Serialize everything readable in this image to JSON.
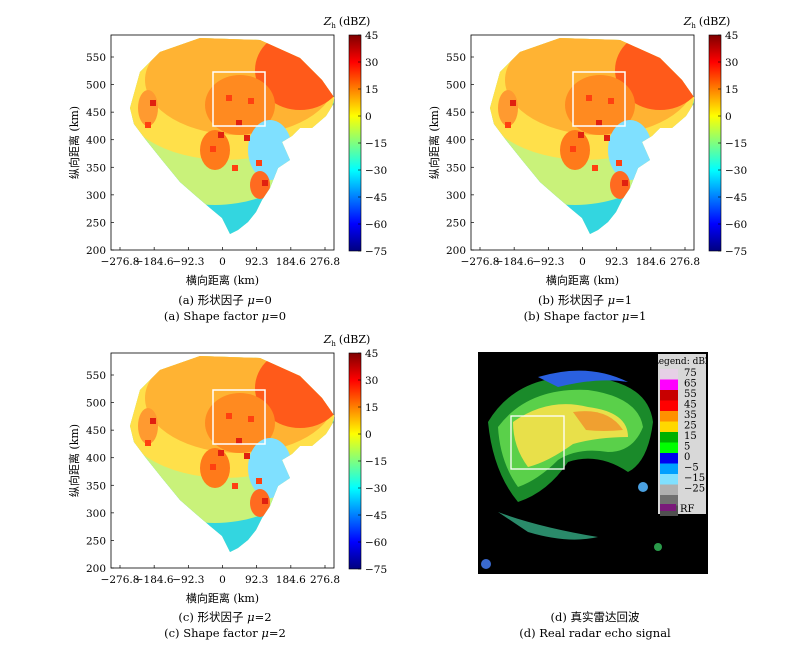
{
  "panels": [
    {
      "id": "a",
      "x_label": "横向距离 (km)",
      "y_label": "纵向距离 (km)",
      "x_ticks": [
        "−276.8",
        "−184.6",
        "−92.3",
        "0",
        "92.3",
        "184.6",
        "276.8"
      ],
      "y_ticks": [
        "550",
        "500",
        "450",
        "400",
        "350",
        "300",
        "250",
        "200"
      ],
      "colorbar_title_sym": "Z",
      "colorbar_title_sub": "h",
      "colorbar_title_unit": "(dBZ)",
      "colorbar_ticks": [
        "45",
        "30",
        "15",
        "0",
        "−15",
        "−30",
        "−45",
        "−60",
        "−75"
      ],
      "caption_cn_prefix": "(a) 形状因子 ",
      "caption_cn_mu": "μ",
      "caption_cn_val": "=0",
      "caption_en_prefix": "(a) Shape factor ",
      "caption_en_mu": "μ",
      "caption_en_val": "=0"
    },
    {
      "id": "b",
      "x_label": "横向距离 (km)",
      "y_label": "纵向距离 (km)",
      "x_ticks": [
        "−276.8",
        "−184.6",
        "−92.3",
        "0",
        "92.3",
        "184.6",
        "276.8"
      ],
      "y_ticks": [
        "550",
        "500",
        "450",
        "400",
        "350",
        "300",
        "250",
        "200"
      ],
      "colorbar_title_sym": "Z",
      "colorbar_title_sub": "h",
      "colorbar_title_unit": "(dBZ)",
      "colorbar_ticks": [
        "45",
        "30",
        "15",
        "0",
        "−15",
        "−30",
        "−45",
        "−60",
        "−75"
      ],
      "caption_cn_prefix": "(b) 形状因子 ",
      "caption_cn_mu": "μ",
      "caption_cn_val": "=1",
      "caption_en_prefix": "(b) Shape factor ",
      "caption_en_mu": "μ",
      "caption_en_val": "=1"
    },
    {
      "id": "c",
      "x_label": "横向距离 (km)",
      "y_label": "纵向距离 (km)",
      "x_ticks": [
        "−276.8",
        "−184.6",
        "−92.3",
        "0",
        "92.3",
        "184.6",
        "276.8"
      ],
      "y_ticks": [
        "550",
        "500",
        "450",
        "400",
        "350",
        "300",
        "250",
        "200"
      ],
      "colorbar_title_sym": "Z",
      "colorbar_title_sub": "h",
      "colorbar_title_unit": "(dBZ)",
      "colorbar_ticks": [
        "45",
        "30",
        "15",
        "0",
        "−15",
        "−30",
        "−45",
        "−60",
        "−75"
      ],
      "caption_cn_prefix": "(c) 形状因子 ",
      "caption_cn_mu": "μ",
      "caption_cn_val": "=2",
      "caption_en_prefix": "(c) Shape factor ",
      "caption_en_mu": "μ",
      "caption_en_val": "=2"
    }
  ],
  "radar": {
    "legend_title": "Legend: dBZ",
    "legend_values": [
      "75",
      "65",
      "55",
      "45",
      "35",
      "25",
      "15",
      "5",
      "0",
      "−5",
      "−15",
      "−25"
    ],
    "legend_rf": "RF",
    "caption_cn": "(d) 真实雷达回波",
    "caption_en": "(d) Real radar echo signal"
  },
  "colors": {
    "colormap": [
      "#00007f",
      "#0000ff",
      "#007fff",
      "#00ffff",
      "#7fff7f",
      "#ffff00",
      "#ff7f00",
      "#ff0000",
      "#7f0000"
    ],
    "legend_colors": [
      "#e6d0e6",
      "#ff00ff",
      "#c80000",
      "#ff0000",
      "#ff9000",
      "#ffd800",
      "#00b000",
      "#00ff00",
      "#0000f0",
      "#00a0ff",
      "#80e0ff",
      "#b0b0b0",
      "#707070",
      "#505050"
    ],
    "rf_color": "#7a1a7a",
    "radar_bg": "#000000"
  }
}
